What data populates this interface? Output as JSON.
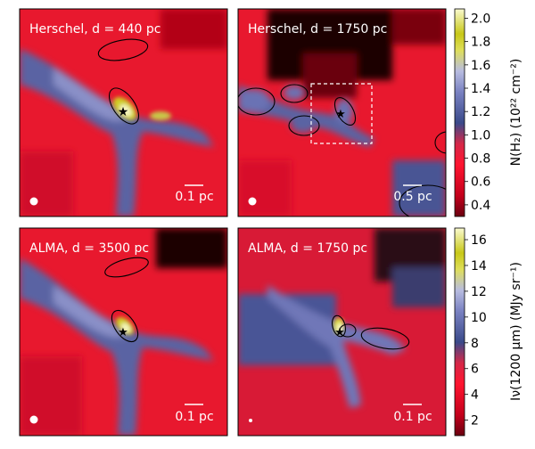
{
  "chart_data": [
    {
      "type": "heatmap",
      "panel": "top-left",
      "title": "Herschel,  d = 440 pc",
      "instrument": "Herschel",
      "distance_pc": 440,
      "scalebar_label": "0.1 pc",
      "beam": "white dot, bottom-left",
      "clumps": 2,
      "protostars": 1
    },
    {
      "type": "heatmap",
      "panel": "top-right",
      "title": "Herschel,  d = 1750 pc",
      "instrument": "Herschel",
      "distance_pc": 1750,
      "scalebar_label": "0.5 pc",
      "beam": "white dot, bottom-left",
      "clumps": 6,
      "protostars": 1,
      "zoom_box": "dashed white square around protostar"
    },
    {
      "type": "heatmap",
      "panel": "bottom-left",
      "title": "ALMA,  d = 3500 pc",
      "instrument": "ALMA",
      "distance_pc": 3500,
      "scalebar_label": "0.1 pc",
      "beam": "white dot, bottom-left",
      "clumps": 2,
      "protostars": 1
    },
    {
      "type": "heatmap",
      "panel": "bottom-right",
      "title": "ALMA,  d = 1750 pc",
      "instrument": "ALMA",
      "distance_pc": 1750,
      "scalebar_label": "0.1 pc",
      "beam": "white dot, bottom-left",
      "clumps": 3,
      "protostars": 1
    }
  ],
  "colorbars": {
    "top": {
      "label": "N(H₂) (10²² cm⁻²)",
      "ticks": [
        "0.4",
        "0.6",
        "0.8",
        "1.0",
        "1.2",
        "1.4",
        "1.6",
        "1.8",
        "2.0"
      ],
      "range": [
        0.3,
        2.08
      ]
    },
    "bottom": {
      "label": "Iν(1200 μm) (MJy sr⁻¹)",
      "ticks": [
        "2",
        "4",
        "6",
        "8",
        "10",
        "12",
        "14",
        "16"
      ],
      "range": [
        0.8,
        16.9
      ]
    }
  },
  "colors": {
    "low": "#6a0010",
    "red": "#e8102a",
    "slate": "#5d6aa8",
    "lavender": "#a6acd8",
    "yellow": "#d8d820",
    "high": "#fafad0"
  }
}
